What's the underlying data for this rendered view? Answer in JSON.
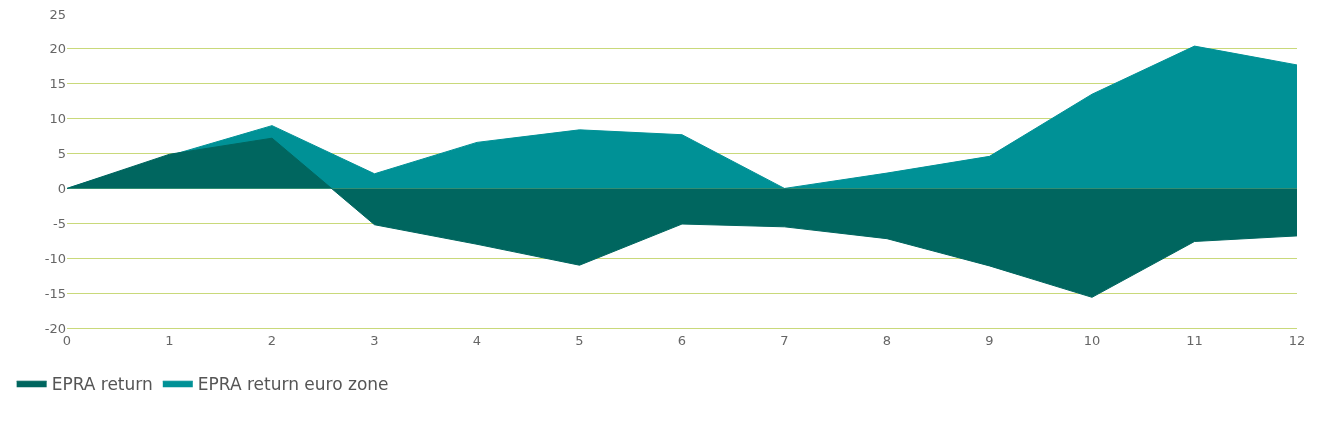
{
  "chart_data": {
    "type": "area",
    "x": [
      0,
      1,
      2,
      3,
      4,
      5,
      6,
      7,
      8,
      9,
      10,
      11,
      12
    ],
    "series": [
      {
        "name": "EPRA return",
        "color": "#00665f",
        "values": [
          0,
          4.9,
          7.2,
          -5.2,
          -8.0,
          -11.0,
          -5.1,
          -5.5,
          -7.2,
          -11.1,
          -15.6,
          -7.6,
          -6.8
        ]
      },
      {
        "name": "EPRA return euro zone",
        "color": "#009196",
        "values": [
          0,
          4.7,
          9.0,
          2.1,
          6.6,
          8.4,
          7.7,
          0,
          2.2,
          4.6,
          13.5,
          20.4,
          17.7
        ]
      }
    ],
    "xlim": [
      0,
      12
    ],
    "xticks": [
      0,
      1,
      2,
      3,
      4,
      5,
      6,
      7,
      8,
      9,
      10,
      11,
      12
    ],
    "ylim": [
      -20,
      25
    ],
    "yticks": [
      -20,
      -15,
      -10,
      -5,
      0,
      5,
      10,
      15,
      20,
      25
    ],
    "grid": "y",
    "legend": "bottom left"
  }
}
